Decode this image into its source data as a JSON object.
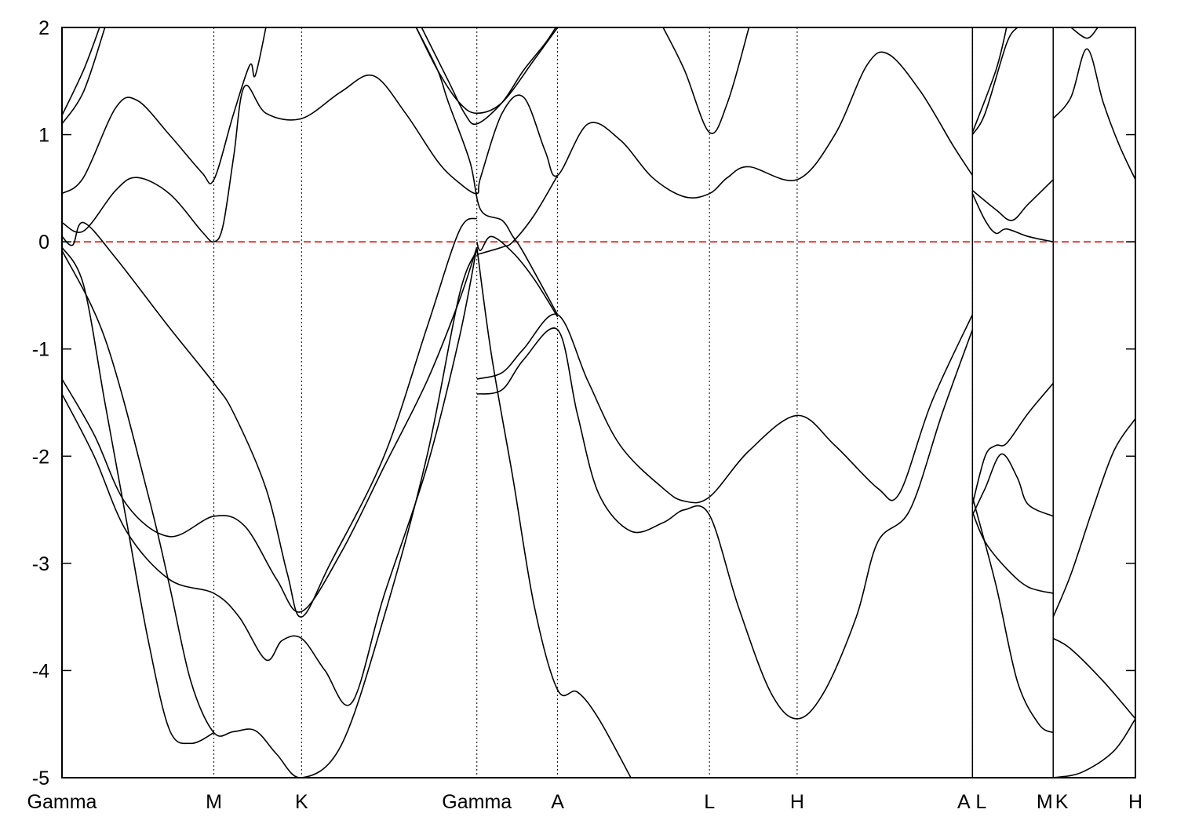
{
  "chart_data": {
    "type": "line",
    "title": "",
    "xlabel": "",
    "ylabel": "",
    "ylim": [
      -5,
      2
    ],
    "yticks": [
      2,
      1,
      0,
      -1,
      -2,
      -3,
      -4,
      -5
    ],
    "ytick_labels": [
      "2",
      "1",
      "0",
      "-1",
      "-2",
      "-3",
      "-4",
      "-5"
    ],
    "xlim": [
      0,
      1
    ],
    "kpoints": [
      {
        "label": "Gamma",
        "x": 0.0
      },
      {
        "label": "M",
        "x": 0.1415
      },
      {
        "label": "K",
        "x": 0.2232
      },
      {
        "label": "Gamma",
        "x": 0.3865
      },
      {
        "label": "A",
        "x": 0.4617
      },
      {
        "label": "L",
        "x": 0.6032
      },
      {
        "label": "H",
        "x": 0.6849
      },
      {
        "label": "A",
        "x": 0.8482
      },
      {
        "label": "L",
        "x": 0.8482
      },
      {
        "label": "M",
        "x": 0.9234
      },
      {
        "label": "K",
        "x": 0.9234
      },
      {
        "label": "H",
        "x": 1.0
      }
    ],
    "kpoint_label_text": [
      {
        "label": "Gamma",
        "x": 0.0
      },
      {
        "label": "M",
        "x": 0.1415
      },
      {
        "label": "K",
        "x": 0.2232
      },
      {
        "label": "Gamma",
        "x": 0.3865
      },
      {
        "label": "A",
        "x": 0.4617
      },
      {
        "label": "L",
        "x": 0.6032
      },
      {
        "label": "H",
        "x": 0.6849
      },
      {
        "label": "A",
        "x": 0.8402
      },
      {
        "label": "L",
        "x": 0.8562
      },
      {
        "label": "M",
        "x": 0.9154
      },
      {
        "label": "K",
        "x": 0.9314
      },
      {
        "label": "H",
        "x": 1.0
      }
    ],
    "dotted_lines_at": [
      0.1415,
      0.2232,
      0.3865,
      0.4617,
      0.6032,
      0.6849,
      0.8482
    ],
    "solid_lines_at": [
      0.8482,
      0.9234
    ],
    "fermi_level": {
      "y": 0,
      "color": "#e00000",
      "style": "dashed"
    },
    "line_color": "#000000",
    "series": [
      {
        "values": [
          [
            0,
            -1.28
          ],
          [
            0.03,
            -1.8
          ],
          [
            0.06,
            -2.45
          ],
          [
            0.1,
            -2.75
          ],
          [
            0.1415,
            -2.56
          ],
          [
            0.17,
            -2.65
          ],
          [
            0.2,
            -3.15
          ],
          [
            0.2232,
            -3.45
          ],
          [
            0.26,
            -2.9
          ],
          [
            0.3,
            -2.1
          ],
          [
            0.34,
            -1.3
          ],
          [
            0.37,
            -0.55
          ],
          [
            0.3865,
            -0.05
          ]
        ]
      },
      {
        "values": [
          [
            0,
            -1.42
          ],
          [
            0.03,
            -2.0
          ],
          [
            0.06,
            -2.7
          ],
          [
            0.1,
            -3.15
          ],
          [
            0.1415,
            -3.28
          ],
          [
            0.165,
            -3.5
          ],
          [
            0.19,
            -3.9
          ],
          [
            0.205,
            -3.72
          ],
          [
            0.2232,
            -3.7
          ],
          [
            0.245,
            -4.0
          ],
          [
            0.27,
            -4.3
          ],
          [
            0.3,
            -3.3
          ],
          [
            0.34,
            -2.1
          ],
          [
            0.37,
            -0.9
          ],
          [
            0.3865,
            -0.05
          ]
        ]
      },
      {
        "values": [
          [
            0,
            -0.08
          ],
          [
            0.04,
            -0.9
          ],
          [
            0.08,
            -2.35
          ],
          [
            0.1,
            -3.2
          ],
          [
            0.12,
            -4.1
          ],
          [
            0.1415,
            -4.58
          ],
          [
            0.16,
            -4.57
          ],
          [
            0.18,
            -4.56
          ],
          [
            0.2,
            -4.78
          ],
          [
            0.2232,
            -5.0
          ],
          [
            0.26,
            -4.7
          ],
          [
            0.3,
            -3.5
          ],
          [
            0.34,
            -2.0
          ],
          [
            0.37,
            -0.5
          ],
          [
            0.3865,
            -0.08
          ]
        ]
      },
      {
        "values": [
          [
            0,
            -0.05
          ],
          [
            0.02,
            -0.4
          ],
          [
            0.04,
            -1.5
          ],
          [
            0.06,
            -2.6
          ],
          [
            0.08,
            -3.7
          ],
          [
            0.1,
            -4.55
          ],
          [
            0.12,
            -4.68
          ],
          [
            0.1415,
            -4.58
          ]
        ]
      },
      {
        "values": [
          [
            0.3865,
            -1.28
          ],
          [
            0.41,
            -1.22
          ],
          [
            0.43,
            -1.0
          ],
          [
            0.4617,
            -0.68
          ],
          [
            0.49,
            -1.3
          ],
          [
            0.52,
            -1.9
          ],
          [
            0.56,
            -2.3
          ],
          [
            0.58,
            -2.42
          ],
          [
            0.6032,
            -2.38
          ],
          [
            0.64,
            -1.95
          ],
          [
            0.6849,
            -1.62
          ],
          [
            0.72,
            -1.9
          ],
          [
            0.76,
            -2.3
          ],
          [
            0.78,
            -2.35
          ],
          [
            0.81,
            -1.5
          ],
          [
            0.8482,
            -0.68
          ]
        ]
      },
      {
        "values": [
          [
            0.3865,
            -1.42
          ],
          [
            0.41,
            -1.38
          ],
          [
            0.43,
            -1.1
          ],
          [
            0.4617,
            -0.82
          ],
          [
            0.48,
            -1.6
          ],
          [
            0.5,
            -2.35
          ],
          [
            0.53,
            -2.7
          ],
          [
            0.56,
            -2.62
          ],
          [
            0.58,
            -2.5
          ],
          [
            0.6032,
            -2.55
          ],
          [
            0.63,
            -3.4
          ],
          [
            0.66,
            -4.2
          ],
          [
            0.6849,
            -4.45
          ],
          [
            0.71,
            -4.2
          ],
          [
            0.74,
            -3.5
          ],
          [
            0.76,
            -2.8
          ],
          [
            0.79,
            -2.5
          ],
          [
            0.82,
            -1.6
          ],
          [
            0.8482,
            -0.82
          ]
        ]
      },
      {
        "values": [
          [
            0.3865,
            -0.05
          ],
          [
            0.4,
            -1.05
          ],
          [
            0.42,
            -2.2
          ],
          [
            0.44,
            -3.4
          ],
          [
            0.4617,
            -4.18
          ],
          [
            0.48,
            -4.2
          ],
          [
            0.5,
            -4.45
          ],
          [
            0.53,
            -5.0
          ]
        ]
      },
      {
        "values": [
          [
            0.8482,
            -2.45
          ],
          [
            0.86,
            -2.0
          ],
          [
            0.87,
            -1.9
          ],
          [
            0.88,
            -1.88
          ],
          [
            0.9,
            -1.6
          ],
          [
            0.9234,
            -1.32
          ]
        ]
      },
      {
        "values": [
          [
            0.8482,
            -2.55
          ],
          [
            0.86,
            -2.3
          ],
          [
            0.875,
            -1.98
          ],
          [
            0.89,
            -2.2
          ],
          [
            0.9,
            -2.45
          ],
          [
            0.9234,
            -2.56
          ]
        ]
      },
      {
        "values": [
          [
            0.8482,
            -2.52
          ],
          [
            0.86,
            -2.8
          ],
          [
            0.88,
            -3.05
          ],
          [
            0.9,
            -3.22
          ],
          [
            0.9234,
            -3.28
          ]
        ]
      },
      {
        "values": [
          [
            0.8482,
            -2.38
          ],
          [
            0.87,
            -3.2
          ],
          [
            0.89,
            -4.1
          ],
          [
            0.91,
            -4.5
          ],
          [
            0.9234,
            -4.58
          ]
        ]
      },
      {
        "values": [
          [
            0.9234,
            -3.7
          ],
          [
            0.94,
            -3.8
          ],
          [
            0.97,
            -4.1
          ],
          [
            1.0,
            -4.45
          ]
        ]
      },
      {
        "values": [
          [
            0.9234,
            -5.0
          ],
          [
            0.95,
            -4.95
          ],
          [
            0.98,
            -4.75
          ],
          [
            1.0,
            -4.45
          ]
        ]
      },
      {
        "values": [
          [
            0.9234,
            -3.5
          ],
          [
            0.94,
            -3.1
          ],
          [
            0.96,
            -2.5
          ],
          [
            0.98,
            -1.95
          ],
          [
            1.0,
            -1.65
          ]
        ]
      },
      {
        "values": [
          [
            0,
            0.18
          ],
          [
            0.02,
            0.1
          ],
          [
            0.05,
            0.48
          ],
          [
            0.07,
            0.6
          ],
          [
            0.1,
            0.45
          ],
          [
            0.13,
            0.1
          ],
          [
            0.1415,
            0.0
          ],
          [
            0.15,
            0.15
          ],
          [
            0.16,
            0.8
          ],
          [
            0.17,
            1.45
          ],
          [
            0.19,
            1.2
          ],
          [
            0.2232,
            1.15
          ],
          [
            0.26,
            1.4
          ],
          [
            0.29,
            1.55
          ],
          [
            0.32,
            1.2
          ],
          [
            0.35,
            0.75
          ],
          [
            0.37,
            0.55
          ],
          [
            0.3865,
            0.45
          ],
          [
            0.39,
            0.6
          ],
          [
            0.41,
            1.2
          ],
          [
            0.43,
            1.35
          ],
          [
            0.45,
            0.85
          ],
          [
            0.4617,
            0.62
          ],
          [
            0.49,
            1.1
          ],
          [
            0.52,
            0.95
          ],
          [
            0.55,
            0.6
          ],
          [
            0.58,
            0.42
          ],
          [
            0.6032,
            0.45
          ],
          [
            0.62,
            0.6
          ],
          [
            0.64,
            0.7
          ],
          [
            0.6849,
            0.58
          ],
          [
            0.72,
            1.0
          ],
          [
            0.75,
            1.65
          ],
          [
            0.77,
            1.75
          ],
          [
            0.8,
            1.4
          ],
          [
            0.83,
            0.9
          ],
          [
            0.8482,
            0.62
          ]
        ]
      },
      {
        "values": [
          [
            0,
            0.45
          ],
          [
            0.02,
            0.6
          ],
          [
            0.05,
            1.25
          ],
          [
            0.07,
            1.32
          ],
          [
            0.1,
            1.0
          ],
          [
            0.13,
            0.65
          ],
          [
            0.1415,
            0.58
          ],
          [
            0.16,
            1.2
          ],
          [
            0.175,
            1.65
          ],
          [
            0.18,
            1.55
          ],
          [
            0.19,
            2.0
          ]
        ]
      },
      {
        "values": [
          [
            0,
            1.1
          ],
          [
            0.02,
            1.4
          ],
          [
            0.04,
            2.0
          ]
        ]
      },
      {
        "values": [
          [
            0,
            1.18
          ],
          [
            0.02,
            1.6
          ],
          [
            0.035,
            2.0
          ]
        ]
      },
      {
        "values": [
          [
            0.33,
            2.0
          ],
          [
            0.35,
            1.6
          ],
          [
            0.37,
            1.3
          ],
          [
            0.3865,
            1.2
          ],
          [
            0.41,
            1.3
          ],
          [
            0.44,
            1.7
          ],
          [
            0.4617,
            2.0
          ]
        ]
      },
      {
        "values": [
          [
            0.335,
            2.0
          ],
          [
            0.36,
            1.5
          ],
          [
            0.375,
            1.2
          ],
          [
            0.3865,
            1.1
          ],
          [
            0.41,
            1.3
          ],
          [
            0.43,
            1.6
          ],
          [
            0.45,
            1.85
          ],
          [
            0.46,
            2.0
          ]
        ]
      },
      {
        "values": [
          [
            0.33,
            2.0
          ],
          [
            0.35,
            1.6
          ],
          [
            0.36,
            1.3
          ],
          [
            0.38,
            0.75
          ],
          [
            0.39,
            0.3
          ],
          [
            0.41,
            0.2
          ],
          [
            0.42,
            0.05
          ],
          [
            0.43,
            -0.1
          ],
          [
            0.4617,
            -0.68
          ]
        ]
      },
      {
        "values": [
          [
            0.3865,
            -0.12
          ],
          [
            0.41,
            -0.05
          ],
          [
            0.42,
            0.0
          ],
          [
            0.44,
            0.25
          ],
          [
            0.4617,
            0.62
          ]
        ]
      },
      {
        "values": [
          [
            0.56,
            2.0
          ],
          [
            0.58,
            1.6
          ],
          [
            0.6032,
            1.02
          ],
          [
            0.62,
            1.3
          ],
          [
            0.64,
            2.0
          ]
        ]
      },
      {
        "values": [
          [
            0.8482,
            1.0
          ],
          [
            0.86,
            1.2
          ],
          [
            0.88,
            1.85
          ],
          [
            0.89,
            2.0
          ]
        ]
      },
      {
        "values": [
          [
            0.8482,
            1.02
          ],
          [
            0.87,
            1.6
          ],
          [
            0.88,
            2.0
          ]
        ]
      },
      {
        "values": [
          [
            0.8482,
            0.45
          ],
          [
            0.86,
            0.2
          ],
          [
            0.87,
            0.08
          ],
          [
            0.88,
            0.12
          ],
          [
            0.9,
            0.05
          ],
          [
            0.9234,
            0.0
          ]
        ]
      },
      {
        "values": [
          [
            0.8482,
            0.48
          ],
          [
            0.87,
            0.3
          ],
          [
            0.885,
            0.2
          ],
          [
            0.9,
            0.35
          ],
          [
            0.9234,
            0.58
          ]
        ]
      },
      {
        "values": [
          [
            0.9234,
            1.15
          ],
          [
            0.94,
            1.35
          ],
          [
            0.955,
            1.8
          ],
          [
            0.97,
            1.3
          ],
          [
            0.985,
            0.9
          ],
          [
            1.0,
            0.58
          ]
        ]
      },
      {
        "values": [
          [
            0.94,
            2.0
          ],
          [
            0.955,
            1.9
          ],
          [
            0.965,
            2.0
          ]
        ]
      },
      {
        "values": [
          [
            0,
            0.05
          ],
          [
            0.01,
            -0.03
          ],
          [
            0.02,
            0.18
          ],
          [
            0.05,
            -0.15
          ],
          [
            0.1,
            -0.8
          ],
          [
            0.1415,
            -1.32
          ],
          [
            0.16,
            -1.6
          ],
          [
            0.19,
            -2.3
          ],
          [
            0.21,
            -3.1
          ],
          [
            0.2232,
            -3.5
          ],
          [
            0.25,
            -3.0
          ],
          [
            0.3,
            -2.0
          ],
          [
            0.34,
            -0.8
          ],
          [
            0.37,
            0.1
          ],
          [
            0.3865,
            0.22
          ]
        ]
      },
      {
        "values": [
          [
            0.3865,
            0.0
          ],
          [
            0.39,
            -0.08
          ],
          [
            0.4,
            0.05
          ],
          [
            0.42,
            -0.1
          ],
          [
            0.44,
            -0.35
          ],
          [
            0.4617,
            -0.7
          ]
        ]
      }
    ]
  }
}
